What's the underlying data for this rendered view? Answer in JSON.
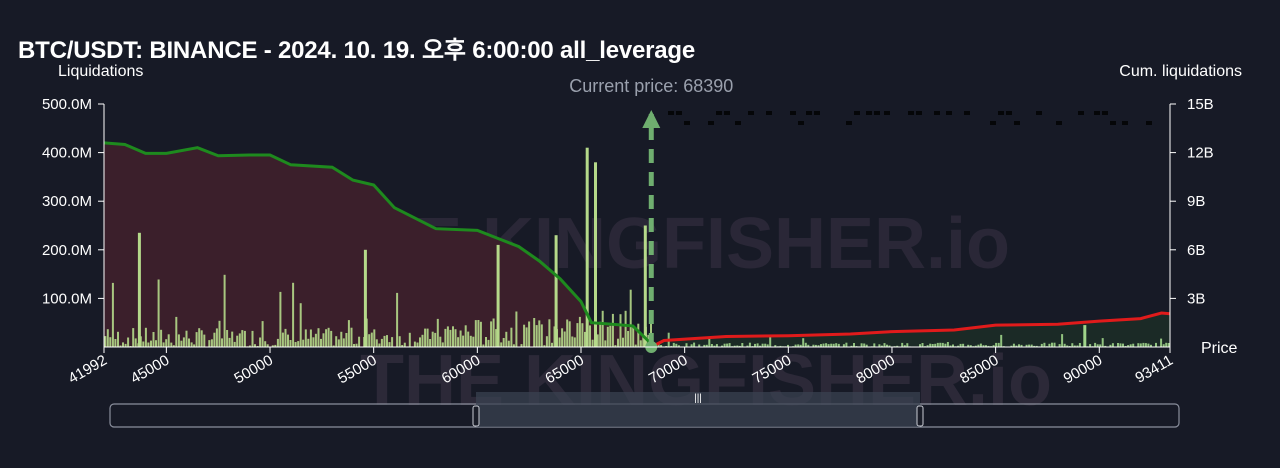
{
  "title": "BTC/USDT: BINANCE - 2024. 10. 19. 오후 6:00:00 all_leverage",
  "chart_data": {
    "type": "bar",
    "left_axis_label": "Liquidations",
    "right_axis_label": "Cum. liquidations",
    "x_axis_label": "Price",
    "current_price_label": "Current price: 68390",
    "current_price": 68390,
    "watermark": "THE KINGFISHER.io",
    "x_range": [
      41992,
      93411
    ],
    "x_ticks": [
      41992,
      45000,
      50000,
      55000,
      60000,
      65000,
      70000,
      75000,
      80000,
      85000,
      90000,
      93411
    ],
    "x_tick_labels": [
      "41992",
      "45000",
      "50000",
      "55000",
      "60000",
      "65000",
      "70000",
      "75000",
      "80000",
      "85000",
      "90000",
      "93411"
    ],
    "y_left_range": [
      0,
      500000000
    ],
    "y_left_ticks": [
      100000000,
      200000000,
      300000000,
      400000000,
      500000000
    ],
    "y_left_tick_labels": [
      "100.0M",
      "200.0M",
      "300.0M",
      "400.0M",
      "500.0M"
    ],
    "y_right_range": [
      0,
      15000000000
    ],
    "y_right_ticks": [
      3000000000,
      6000000000,
      9000000000,
      12000000000,
      15000000000
    ],
    "y_right_tick_labels": [
      "3B",
      "6B",
      "9B",
      "12B",
      "15B"
    ],
    "short_cum_curve": {
      "name": "",
      "color": "#1e8a1e",
      "points": [
        [
          41992,
          12600000000
        ],
        [
          43000,
          12500000000
        ],
        [
          44000,
          11950000000
        ],
        [
          45000,
          11950000000
        ],
        [
          46500,
          12300000000
        ],
        [
          47500,
          11800000000
        ],
        [
          49000,
          11850000000
        ],
        [
          50000,
          11850000000
        ],
        [
          51000,
          11250000000
        ],
        [
          53000,
          11100000000
        ],
        [
          54000,
          10300000000
        ],
        [
          55000,
          10000000000
        ],
        [
          56000,
          8600000000
        ],
        [
          58000,
          7300000000
        ],
        [
          60000,
          7200000000
        ],
        [
          61000,
          6700000000
        ],
        [
          62000,
          6200000000
        ],
        [
          63000,
          5300000000
        ],
        [
          64000,
          4200000000
        ],
        [
          65000,
          2800000000
        ],
        [
          65500,
          1500000000
        ],
        [
          66500,
          1400000000
        ],
        [
          67500,
          1300000000
        ],
        [
          68390,
          200000000
        ]
      ]
    },
    "long_cum_curve": {
      "name": "",
      "color": "#e01b1b",
      "points": [
        [
          68390,
          0
        ],
        [
          69000,
          400000000
        ],
        [
          72000,
          650000000
        ],
        [
          75000,
          700000000
        ],
        [
          78000,
          800000000
        ],
        [
          80000,
          950000000
        ],
        [
          83000,
          1050000000
        ],
        [
          85000,
          1350000000
        ],
        [
          88000,
          1400000000
        ],
        [
          90000,
          1600000000
        ],
        [
          92000,
          1750000000
        ],
        [
          93000,
          2100000000
        ],
        [
          93411,
          2050000000
        ]
      ]
    },
    "bar_color_short": "#b5d98a",
    "bar_color_long": "#9fd48a",
    "notable_bars": [
      {
        "price": 43700,
        "value": 235000000
      },
      {
        "price": 54600,
        "value": 200000000
      },
      {
        "price": 61000,
        "value": 210000000
      },
      {
        "price": 63800,
        "value": 230000000
      },
      {
        "price": 65300,
        "value": 410000000
      },
      {
        "price": 65700,
        "value": 380000000
      },
      {
        "price": 68100,
        "value": 250000000
      },
      {
        "price": 89300,
        "value": 45000000
      }
    ],
    "short_area_fill": "#3b1f2b",
    "long_area_fill": "#1b2a26",
    "grid": false,
    "legend": "none"
  },
  "scrollbar": {
    "handle_grip": "|||"
  }
}
